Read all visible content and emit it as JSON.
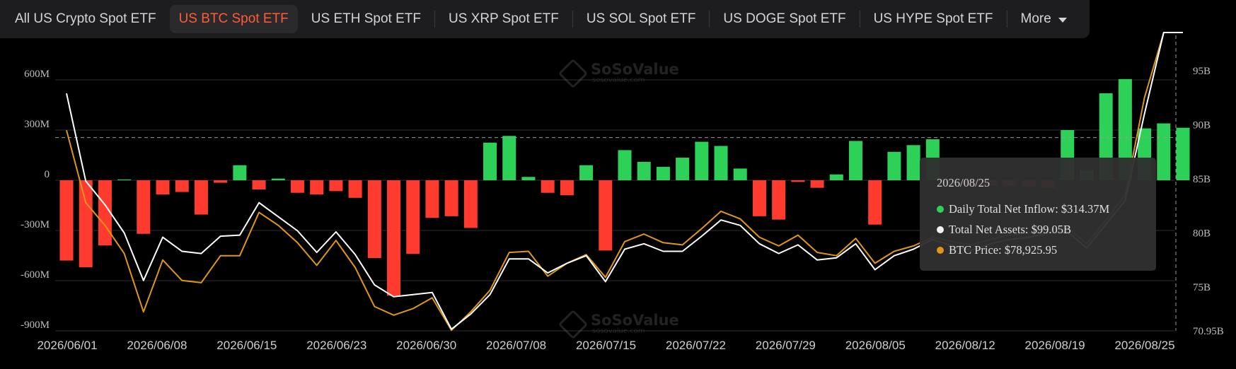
{
  "tabs": [
    {
      "label": "All US Crypto Spot ETF",
      "active": false
    },
    {
      "label": "US BTC Spot ETF",
      "active": true
    },
    {
      "label": "US ETH Spot ETF",
      "active": false
    },
    {
      "label": "US XRP Spot ETF",
      "active": false
    },
    {
      "label": "US SOL Spot ETF",
      "active": false
    },
    {
      "label": "US DOGE Spot ETF",
      "active": false
    },
    {
      "label": "US HYPE Spot ETF",
      "active": false
    }
  ],
  "more_label": "More",
  "watermark": {
    "main": "SoSoValue",
    "sub": "sosovalue.com"
  },
  "tooltip": {
    "date": "2026/08/25",
    "rows": [
      {
        "label": "Daily Total Net Inflow: $314.37M",
        "color": "#2ed158"
      },
      {
        "label": "Total Net Assets: $99.05B",
        "color": "#f2f2f2"
      },
      {
        "label": "BTC Price: $78,925.95",
        "color": "#e0961a"
      }
    ]
  },
  "colors": {
    "positive": "#2ed158",
    "negative": "#ff3b30",
    "assets_line": "#ffffff",
    "price_line": "#e0961a",
    "active_tab": "#ff5b35"
  },
  "chart_data": {
    "type": "bar",
    "x_tick_labels": [
      "2026/06/01",
      "2026/06/08",
      "2026/06/15",
      "2026/06/23",
      "2026/06/30",
      "2026/07/08",
      "2026/07/15",
      "2026/07/22",
      "2026/07/29",
      "2026/08/05",
      "2026/08/12",
      "2026/08/19",
      "2026/08/25"
    ],
    "y_left": {
      "ticks": [
        600,
        300,
        0,
        -300,
        -600,
        -900
      ],
      "labels": [
        "600M",
        "300M",
        "0",
        "-300M",
        "-600M",
        "-900M"
      ],
      "min": -900,
      "max": 850,
      "unit": "M"
    },
    "y_right": {
      "ticks": [
        95,
        90,
        85,
        80,
        75,
        70.95
      ],
      "labels": [
        "95B",
        "90B",
        "85B",
        "80B",
        "75B",
        "70.95B"
      ],
      "min": 70.95,
      "max": 98.6
    },
    "reference_value_left": 255,
    "series": [
      {
        "kind": "bar",
        "values": [
          -480,
          -520,
          -390,
          5,
          -320,
          -85,
          -70,
          -205,
          -15,
          90,
          -55,
          10,
          -75,
          -85,
          -65,
          -105,
          -465,
          -690,
          -440,
          -225,
          -215,
          -285,
          225,
          265,
          20,
          -75,
          -90,
          90,
          -420,
          180,
          110,
          80,
          135,
          230,
          205,
          70,
          -215,
          -235,
          -10,
          -45,
          35,
          235,
          -265,
          170,
          210,
          245,
          -20,
          -30,
          -30,
          -35,
          -40,
          -45,
          300,
          60,
          520,
          605,
          310,
          340,
          314
        ]
      },
      {
        "kind": "line",
        "name_from_tooltip": "Total Net Assets",
        "values": [
          92.9,
          84.8,
          82.6,
          80.0,
          75.6,
          79.6,
          78.3,
          78.1,
          79.7,
          79.8,
          82.8,
          81.5,
          80.2,
          78.2,
          80.1,
          78.0,
          75.2,
          74.1,
          74.3,
          74.5,
          71.1,
          72.5,
          74.3,
          77.6,
          77.6,
          76.3,
          77.2,
          77.9,
          75.5,
          78.5,
          79.0,
          78.3,
          78.3,
          79.7,
          81.2,
          80.7,
          79.0,
          78.1,
          78.9,
          77.5,
          77.7,
          79.0,
          76.6,
          77.9,
          78.5,
          79.4,
          78.8,
          78.4,
          79.0,
          79.4,
          79.6,
          80.0,
          80.1,
          78.6,
          80.8,
          83.0,
          91.0,
          99.5,
          99.05
        ]
      },
      {
        "kind": "line",
        "name_from_tooltip": "BTC Price",
        "values": [
          89.5,
          82.8,
          80.7,
          78.1,
          72.7,
          77.5,
          75.6,
          75.4,
          77.9,
          77.9,
          81.9,
          80.7,
          79.1,
          77.0,
          79.3,
          76.8,
          73.2,
          72.4,
          73.0,
          74.0,
          71.0,
          72.7,
          74.7,
          78.2,
          78.3,
          76.0,
          77.2,
          78.0,
          75.9,
          79.2,
          79.9,
          79.1,
          78.9,
          80.4,
          82.0,
          81.3,
          79.6,
          78.8,
          79.8,
          78.2,
          77.9,
          79.5,
          77.2,
          78.3,
          78.8,
          79.6,
          79.2,
          78.9,
          79.4,
          79.8,
          80.0,
          80.3,
          80.5,
          79.0,
          81.2,
          83.5,
          92.5,
          99.2,
          98.6
        ]
      }
    ]
  }
}
